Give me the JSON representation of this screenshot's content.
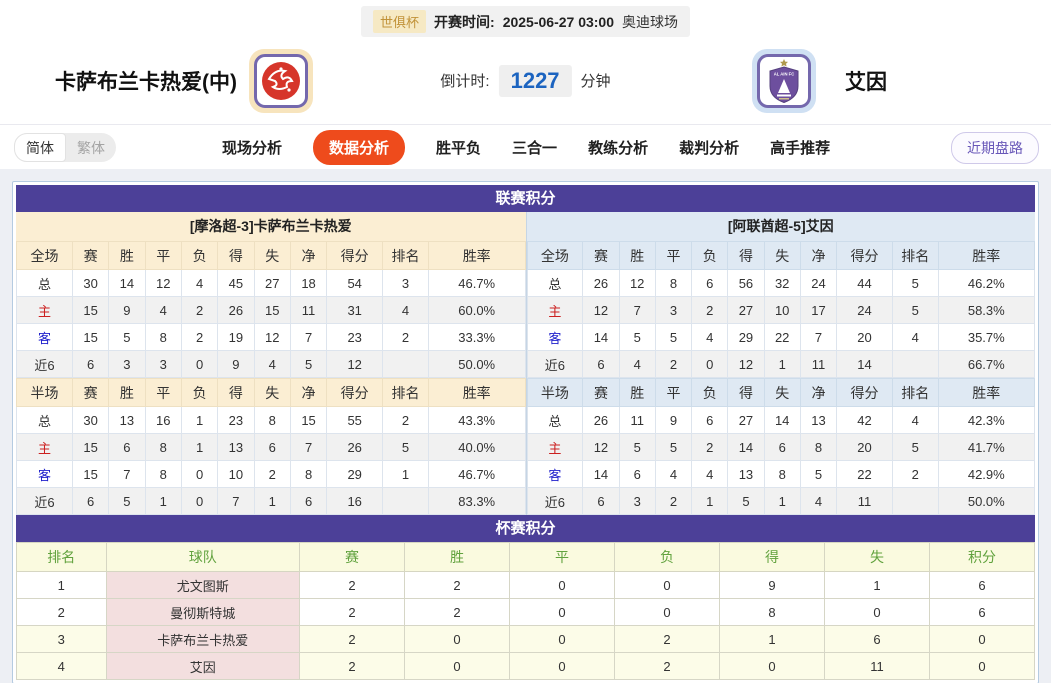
{
  "top_bar": {
    "league_badge": "世俱杯",
    "kickoff_label": "开赛时间:",
    "kickoff_time": "2025-06-27 03:00",
    "venue": "奥迪球场"
  },
  "match_header": {
    "home_team": "卡萨布兰卡热爱(中)",
    "away_team": "艾因",
    "away_logo_text": "AL AIN FC",
    "countdown_label": "倒计时:",
    "countdown_value": "1227",
    "countdown_unit": "分钟"
  },
  "language_toggle": {
    "simplified": "简体",
    "traditional": "繁体"
  },
  "nav": {
    "tabs": [
      {
        "label": "现场分析",
        "active": false
      },
      {
        "label": "数据分析",
        "active": true
      },
      {
        "label": "胜平负",
        "active": false
      },
      {
        "label": "三合一",
        "active": false
      },
      {
        "label": "教练分析",
        "active": false
      },
      {
        "label": "裁判分析",
        "active": false
      },
      {
        "label": "高手推荐",
        "active": false
      }
    ],
    "recent_trend_button": "近期盘路"
  },
  "league_section": {
    "title": "联赛积分",
    "home": {
      "group_title": "[摩洛超-3]卡萨布兰卡热爱",
      "full": {
        "columns": [
          "全场",
          "赛",
          "胜",
          "平",
          "负",
          "得",
          "失",
          "净",
          "得分",
          "排名",
          "胜率"
        ],
        "rows": [
          [
            "总",
            "30",
            "14",
            "12",
            "4",
            "45",
            "27",
            "18",
            "54",
            "3",
            "46.7%"
          ],
          [
            "主",
            "15",
            "9",
            "4",
            "2",
            "26",
            "15",
            "11",
            "31",
            "4",
            "60.0%"
          ],
          [
            "客",
            "15",
            "5",
            "8",
            "2",
            "19",
            "12",
            "7",
            "23",
            "2",
            "33.3%"
          ],
          [
            "近6",
            "6",
            "3",
            "3",
            "0",
            "9",
            "4",
            "5",
            "12",
            "",
            "50.0%"
          ]
        ]
      },
      "half": {
        "columns": [
          "半场",
          "赛",
          "胜",
          "平",
          "负",
          "得",
          "失",
          "净",
          "得分",
          "排名",
          "胜率"
        ],
        "rows": [
          [
            "总",
            "30",
            "13",
            "16",
            "1",
            "23",
            "8",
            "15",
            "55",
            "2",
            "43.3%"
          ],
          [
            "主",
            "15",
            "6",
            "8",
            "1",
            "13",
            "6",
            "7",
            "26",
            "5",
            "40.0%"
          ],
          [
            "客",
            "15",
            "7",
            "8",
            "0",
            "10",
            "2",
            "8",
            "29",
            "1",
            "46.7%"
          ],
          [
            "近6",
            "6",
            "5",
            "1",
            "0",
            "7",
            "1",
            "6",
            "16",
            "",
            "83.3%"
          ]
        ]
      }
    },
    "away": {
      "group_title": "[阿联酋超-5]艾因",
      "full": {
        "columns": [
          "全场",
          "赛",
          "胜",
          "平",
          "负",
          "得",
          "失",
          "净",
          "得分",
          "排名",
          "胜率"
        ],
        "rows": [
          [
            "总",
            "26",
            "12",
            "8",
            "6",
            "56",
            "32",
            "24",
            "44",
            "5",
            "46.2%"
          ],
          [
            "主",
            "12",
            "7",
            "3",
            "2",
            "27",
            "10",
            "17",
            "24",
            "5",
            "58.3%"
          ],
          [
            "客",
            "14",
            "5",
            "5",
            "4",
            "29",
            "22",
            "7",
            "20",
            "4",
            "35.7%"
          ],
          [
            "近6",
            "6",
            "4",
            "2",
            "0",
            "12",
            "1",
            "11",
            "14",
            "",
            "66.7%"
          ]
        ]
      },
      "half": {
        "columns": [
          "半场",
          "赛",
          "胜",
          "平",
          "负",
          "得",
          "失",
          "净",
          "得分",
          "排名",
          "胜率"
        ],
        "rows": [
          [
            "总",
            "26",
            "11",
            "9",
            "6",
            "27",
            "14",
            "13",
            "42",
            "4",
            "42.3%"
          ],
          [
            "主",
            "12",
            "5",
            "5",
            "2",
            "14",
            "6",
            "8",
            "20",
            "5",
            "41.7%"
          ],
          [
            "客",
            "14",
            "6",
            "4",
            "4",
            "13",
            "8",
            "5",
            "22",
            "2",
            "42.9%"
          ],
          [
            "近6",
            "6",
            "3",
            "2",
            "1",
            "5",
            "1",
            "4",
            "11",
            "",
            "50.0%"
          ]
        ]
      }
    }
  },
  "cup_section": {
    "title": "杯赛积分",
    "columns": [
      "排名",
      "球队",
      "赛",
      "胜",
      "平",
      "负",
      "得",
      "失",
      "积分"
    ],
    "rows": [
      [
        "1",
        "尤文图斯",
        "2",
        "2",
        "0",
        "0",
        "9",
        "1",
        "6"
      ],
      [
        "2",
        "曼彻斯特城",
        "2",
        "2",
        "0",
        "0",
        "8",
        "0",
        "6"
      ],
      [
        "3",
        "卡萨布兰卡热爱",
        "2",
        "0",
        "0",
        "2",
        "1",
        "6",
        "0"
      ],
      [
        "4",
        "艾因",
        "2",
        "0",
        "0",
        "2",
        "0",
        "11",
        "0"
      ]
    ]
  },
  "colors": {
    "section_header_purple": "#4c4098",
    "active_tab_orange": "#ee4b1c",
    "countdown_blue": "#1c64c0",
    "home_table_beige": "#fbeed3",
    "away_table_blue": "#dfe9f3",
    "home_row_label_red": "#cc2020",
    "away_row_label_blue": "#1f1fcc",
    "cup_header_green": "#61a23e",
    "cup_team_cell_pink": "#f3dfdf",
    "recent_button_purple": "#6857b8"
  }
}
